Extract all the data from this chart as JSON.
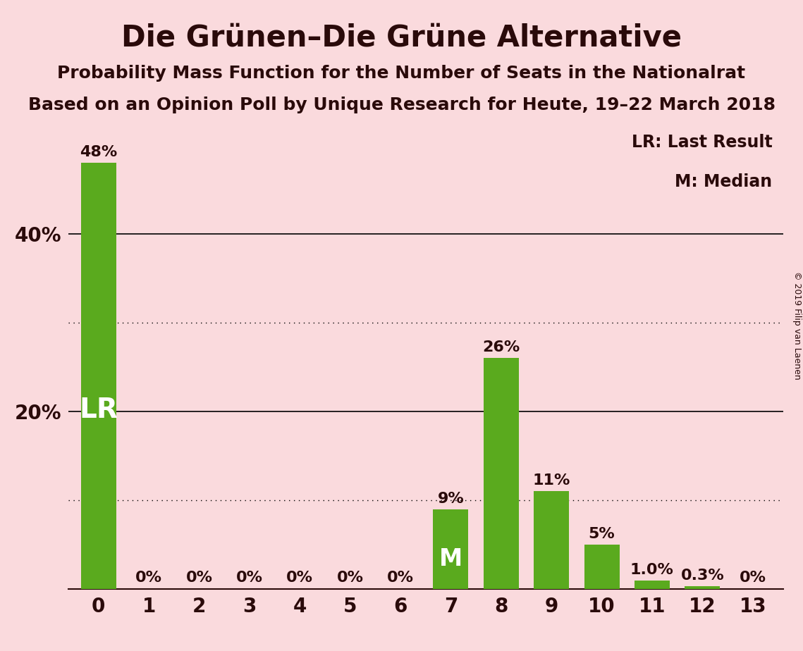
{
  "title": "Die Grünen–Die Grüne Alternative",
  "subtitle1": "Probability Mass Function for the Number of Seats in the Nationalrat",
  "subtitle2": "Based on an Opinion Poll by Unique Research for Heute, 19–22 March 2018",
  "copyright": "© 2019 Filip van Laenen",
  "categories": [
    0,
    1,
    2,
    3,
    4,
    5,
    6,
    7,
    8,
    9,
    10,
    11,
    12,
    13
  ],
  "values": [
    48,
    0,
    0,
    0,
    0,
    0,
    0,
    9,
    26,
    11,
    5,
    1.0,
    0.3,
    0
  ],
  "bar_labels": [
    "48%",
    "0%",
    "0%",
    "0%",
    "0%",
    "0%",
    "0%",
    "9%",
    "26%",
    "11%",
    "5%",
    "1.0%",
    "0.3%",
    "0%"
  ],
  "bar_color": "#5aaa1e",
  "background_color": "#fadadd",
  "text_color": "#2a0a0a",
  "lr_bar_index": 0,
  "m_bar_index": 7,
  "legend_lr": "LR: Last Result",
  "legend_m": "M: Median",
  "ytick_labeled": [
    20,
    40
  ],
  "ytick_labeled_labels": [
    "20%",
    "40%"
  ],
  "solid_hlines": [
    20,
    40
  ],
  "dotted_hlines": [
    10,
    30
  ],
  "ylim_max": 52,
  "title_fontsize": 30,
  "subtitle_fontsize": 18,
  "bar_label_fontsize": 16,
  "axis_label_fontsize": 20,
  "lr_label_fontsize": 28,
  "m_label_fontsize": 24
}
